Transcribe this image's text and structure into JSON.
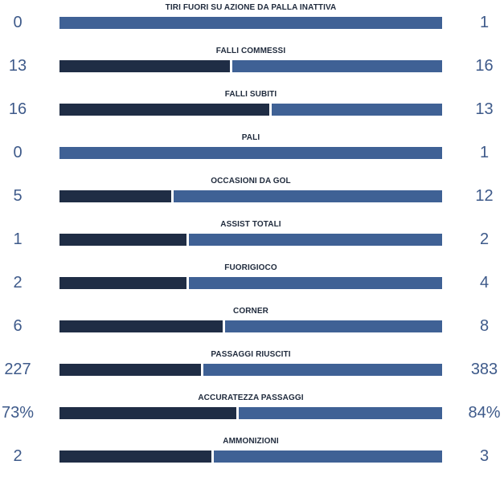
{
  "colors": {
    "home_bar": "#1f2d45",
    "away_bar": "#3f6195",
    "value_text": "#3e5a8a"
  },
  "stats": [
    {
      "label": "TIRI FUORI SU AZIONE DA PALLA INATTIVA",
      "home": "0",
      "away": "1",
      "home_share": 0.0
    },
    {
      "label": "FALLI COMMESSI",
      "home": "13",
      "away": "16",
      "home_share": 0.448
    },
    {
      "label": "FALLI SUBITI",
      "home": "16",
      "away": "13",
      "home_share": 0.552
    },
    {
      "label": "PALI",
      "home": "0",
      "away": "1",
      "home_share": 0.0
    },
    {
      "label": "OCCASIONI DA GOL",
      "home": "5",
      "away": "12",
      "home_share": 0.294
    },
    {
      "label": "ASSIST TOTALI",
      "home": "1",
      "away": "2",
      "home_share": 0.333
    },
    {
      "label": "FUORIGIOCO",
      "home": "2",
      "away": "4",
      "home_share": 0.333
    },
    {
      "label": "CORNER",
      "home": "6",
      "away": "8",
      "home_share": 0.429
    },
    {
      "label": "PASSAGGI RIUSCITI",
      "home": "227",
      "away": "383",
      "home_share": 0.372
    },
    {
      "label": "ACCURATEZZA PASSAGGI",
      "home": "73%",
      "away": "84%",
      "home_share": 0.465
    },
    {
      "label": "AMMONIZIONI",
      "home": "2",
      "away": "3",
      "home_share": 0.4
    }
  ]
}
